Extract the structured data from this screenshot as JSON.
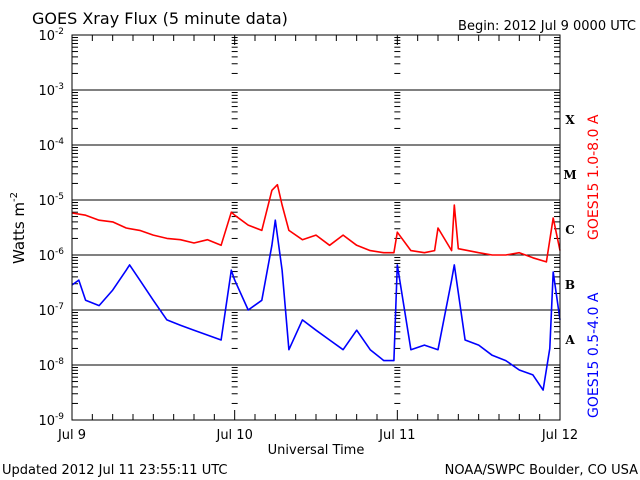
{
  "chart_data": {
    "type": "line",
    "title": "GOES Xray Flux (5 minute data)",
    "begin_label": "Begin:  2012 Jul 9 0000 UTC",
    "xlabel": "Universal Time",
    "ylabel": "Watts m",
    "ylabel_sup": "-2",
    "x_unit": "hours since 2012 Jul 9 0000 UTC",
    "xlim": [
      0,
      72
    ],
    "ylim": [
      1e-09,
      0.01
    ],
    "yscale": "log",
    "grid": "horizontal at decades",
    "x_ticks": [
      {
        "value": 0,
        "label": "Jul 9"
      },
      {
        "value": 24,
        "label": "Jul 10"
      },
      {
        "value": 48,
        "label": "Jul 11"
      },
      {
        "value": 72,
        "label": "Jul 12"
      }
    ],
    "y_ticks": [
      {
        "value": 0.01,
        "base": "10",
        "exp": "-2"
      },
      {
        "value": 0.001,
        "base": "10",
        "exp": "-3"
      },
      {
        "value": 0.0001,
        "base": "10",
        "exp": "-4"
      },
      {
        "value": 1e-05,
        "base": "10",
        "exp": "-5"
      },
      {
        "value": 1e-06,
        "base": "10",
        "exp": "-6"
      },
      {
        "value": 1e-07,
        "base": "10",
        "exp": "-7"
      },
      {
        "value": 1e-08,
        "base": "10",
        "exp": "-8"
      },
      {
        "value": 1e-09,
        "base": "10",
        "exp": "-9"
      }
    ],
    "flare_classes": [
      {
        "label": "X",
        "value": 0.0003
      },
      {
        "label": "M",
        "value": 3e-05
      },
      {
        "label": "C",
        "value": 3e-06
      },
      {
        "label": "B",
        "value": 3e-07
      },
      {
        "label": "A",
        "value": 3e-08
      }
    ],
    "series": [
      {
        "name": "GOES15 1.0-8.0 A",
        "color": "#ff0000",
        "x": [
          0,
          2,
          4,
          6,
          8,
          10,
          12,
          14,
          16,
          18,
          20,
          22,
          23.5,
          24,
          26,
          28,
          29.5,
          30.3,
          31,
          32,
          34,
          36,
          38,
          40,
          42,
          44,
          46,
          47.5,
          48,
          50,
          52,
          53.5,
          54,
          56,
          56.4,
          57,
          60,
          62,
          64,
          66,
          68,
          70,
          71,
          72
        ],
        "values": [
          5.8e-06,
          5.3e-06,
          4.3e-06,
          4e-06,
          3.1e-06,
          2.8e-06,
          2.3e-06,
          2e-06,
          1.9e-06,
          1.65e-06,
          1.9e-06,
          1.5e-06,
          6e-06,
          5.3e-06,
          3.5e-06,
          2.8e-06,
          1.5e-05,
          1.9e-05,
          8.1e-06,
          2.8e-06,
          1.9e-06,
          2.3e-06,
          1.5e-06,
          2.3e-06,
          1.5e-06,
          1.2e-06,
          1.1e-06,
          1.1e-06,
          2.6e-06,
          1.2e-06,
          1.1e-06,
          1.2e-06,
          3.1e-06,
          1.2e-06,
          8.1e-06,
          1.3e-06,
          1.1e-06,
          1e-06,
          1e-06,
          1.1e-06,
          8.9e-07,
          7.5e-07,
          4.7e-06,
          1.2e-06
        ]
      },
      {
        "name": "GOES15 0.5-4.0 A",
        "color": "#0000ff",
        "x": [
          0,
          1,
          2,
          4,
          6,
          8,
          8.5,
          10,
          12,
          14,
          16,
          18,
          20,
          22,
          23.5,
          24,
          26,
          28,
          29.5,
          30,
          31,
          32,
          34,
          36,
          38,
          40,
          42,
          44,
          46,
          47.5,
          48,
          50,
          52,
          54,
          56,
          56.4,
          58,
          60,
          62,
          64,
          66,
          68,
          69.5,
          70.5,
          71,
          72
        ],
        "values": [
          2.85e-07,
          3.5e-07,
          1.5e-07,
          1.2e-07,
          2.3e-07,
          5.3e-07,
          6.6e-07,
          3.5e-07,
          1.5e-07,
          6.6e-08,
          5.3e-08,
          4.3e-08,
          3.5e-08,
          2.85e-08,
          5.3e-07,
          3.5e-07,
          1e-07,
          1.5e-07,
          1.5e-06,
          4.3e-06,
          5.3e-07,
          1.9e-08,
          6.6e-08,
          4.3e-08,
          2.85e-08,
          1.9e-08,
          4.3e-08,
          1.9e-08,
          1.2e-08,
          1.2e-08,
          6.6e-07,
          1.9e-08,
          2.3e-08,
          1.9e-08,
          3.5e-07,
          6.6e-07,
          2.85e-08,
          2.3e-08,
          1.5e-08,
          1.2e-08,
          8.1e-09,
          6.6e-09,
          3.5e-09,
          2e-08,
          4.9e-07,
          6.6e-08
        ]
      }
    ]
  },
  "footer": {
    "updated": "Updated 2012 Jul 11 23:55:11 UTC",
    "credit": "NOAA/SWPC Boulder, CO USA"
  }
}
